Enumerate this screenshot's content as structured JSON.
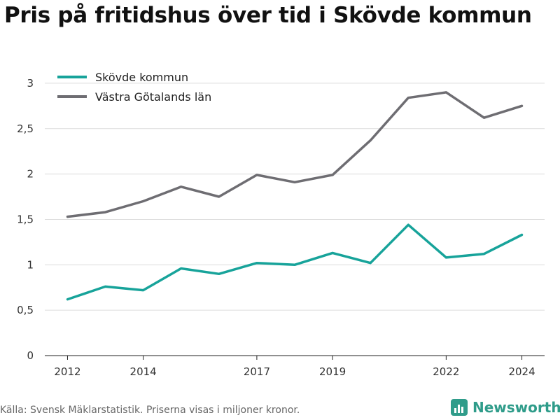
{
  "title": "Pris på fritidshus över tid i Skövde kommun",
  "footer": {
    "source": "Källa: Svensk Mäklarstatistik. Priserna visas i miljoner kronor.",
    "brand": "Newsworthy",
    "brand_icon": "bar-chart-logo-icon"
  },
  "chart_data": {
    "type": "line",
    "title": "Pris på fritidshus över tid i Skövde kommun",
    "xlabel": "",
    "ylabel": "",
    "x": [
      2012,
      2013,
      2014,
      2015,
      2016,
      2017,
      2018,
      2019,
      2020,
      2021,
      2022,
      2023,
      2024
    ],
    "x_ticks": [
      "2012",
      "2014",
      "2017",
      "2019",
      "2022",
      "2024"
    ],
    "x_tick_values": [
      2012,
      2014,
      2017,
      2019,
      2022,
      2024
    ],
    "xlim": [
      2011.4,
      2024.6
    ],
    "ylim": [
      0,
      3.3
    ],
    "y_ticks": [
      "0",
      "0,5",
      "1",
      "1,5",
      "2",
      "2,5",
      "3"
    ],
    "y_tick_values": [
      0,
      0.5,
      1,
      1.5,
      2,
      2.5,
      3
    ],
    "grid": true,
    "legend_position": "top-left",
    "series": [
      {
        "name": "Skövde kommun",
        "color": "#17a39a",
        "values": [
          0.62,
          0.76,
          0.72,
          0.96,
          0.9,
          1.02,
          1.0,
          1.13,
          1.02,
          1.44,
          1.08,
          1.12,
          1.33
        ]
      },
      {
        "name": "Västra Götalands län",
        "color": "#6e6d72",
        "values": [
          1.53,
          1.58,
          1.7,
          1.86,
          1.75,
          1.99,
          1.91,
          1.99,
          2.37,
          2.84,
          2.9,
          2.62,
          2.75
        ]
      }
    ]
  }
}
